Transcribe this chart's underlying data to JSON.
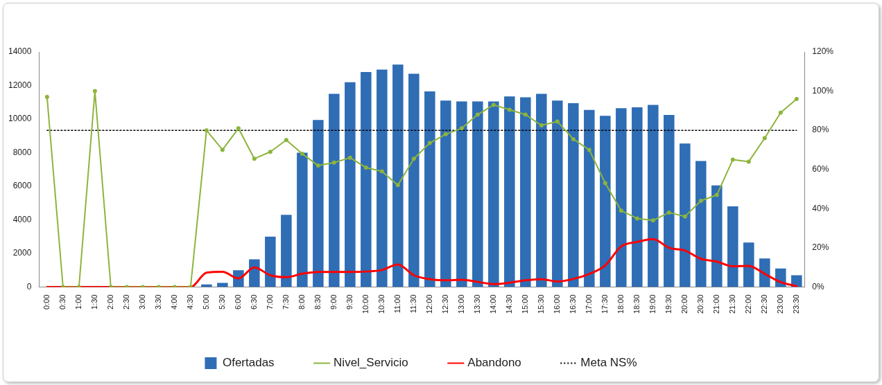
{
  "chart_data": {
    "type": "bar",
    "categories": [
      "0:00",
      "0:30",
      "1:00",
      "1:30",
      "2:00",
      "2:30",
      "3:00",
      "3:30",
      "4:00",
      "4:30",
      "5:00",
      "5:30",
      "6:00",
      "6:30",
      "7:00",
      "7:30",
      "8:00",
      "8:30",
      "9:00",
      "9:30",
      "10:00",
      "10:30",
      "11:00",
      "11:30",
      "12:00",
      "12:30",
      "13:00",
      "13:30",
      "14:00",
      "14:30",
      "15:00",
      "15:30",
      "16:00",
      "16:30",
      "17:00",
      "17:30",
      "18:00",
      "18:30",
      "19:00",
      "19:30",
      "20:00",
      "20:30",
      "21:00",
      "21:30",
      "22:00",
      "22:30",
      "23:00",
      "23:30"
    ],
    "series": [
      {
        "name": "Ofertadas",
        "color": "#2f6db5",
        "values": [
          0,
          0,
          0,
          0,
          0,
          0,
          0,
          0,
          0,
          0,
          150,
          250,
          1000,
          1650,
          3000,
          4300,
          8000,
          9950,
          11500,
          12200,
          12800,
          12950,
          13250,
          12700,
          11650,
          11100,
          11050,
          11050,
          11050,
          11350,
          11300,
          11500,
          11100,
          10950,
          10550,
          10200,
          10650,
          10700,
          10850,
          10250,
          8550,
          7500,
          6050,
          4800,
          2650,
          1700,
          1100,
          700
        ]
      },
      {
        "name": "Nivel_Servicio",
        "type": "line",
        "axis": "y2",
        "color": "#8db43c",
        "marker": "circle",
        "values": [
          97,
          0,
          0,
          100,
          0,
          0,
          0,
          0,
          0,
          0,
          80,
          70,
          81,
          65.5,
          69,
          75,
          68,
          62,
          63.5,
          66,
          61,
          59,
          52,
          65.5,
          73.5,
          78,
          81,
          88,
          93,
          90.5,
          88,
          82.5,
          84.5,
          75.5,
          70,
          53,
          39,
          35,
          34,
          38,
          36,
          44,
          47,
          65,
          64,
          76,
          89,
          96
        ]
      },
      {
        "name": "Abandono",
        "type": "line",
        "axis": "y2",
        "color": "#ff0000",
        "marker": "none",
        "values": [
          0,
          0,
          0,
          0,
          0,
          0,
          0,
          0,
          0,
          0,
          7.3,
          7.8,
          4.4,
          10,
          6,
          5,
          6.8,
          7.7,
          7.7,
          7.7,
          7.9,
          8.7,
          11.5,
          6,
          4,
          3.4,
          3.7,
          2.6,
          1.5,
          2.2,
          3.4,
          4,
          2.8,
          4.1,
          6.7,
          11,
          20.7,
          23,
          24.5,
          20,
          18.6,
          14.4,
          13,
          10.6,
          10.8,
          6.7,
          2.5,
          0.4
        ]
      },
      {
        "name": "Meta NS%",
        "type": "line",
        "axis": "y2",
        "color": "#000000",
        "marker": "none",
        "line_style": "dotted",
        "values": [
          80,
          80,
          80,
          80,
          80,
          80,
          80,
          80,
          80,
          80,
          80,
          80,
          80,
          80,
          80,
          80,
          80,
          80,
          80,
          80,
          80,
          80,
          80,
          80,
          80,
          80,
          80,
          80,
          80,
          80,
          80,
          80,
          80,
          80,
          80,
          80,
          80,
          80,
          80,
          80,
          80,
          80,
          80,
          80,
          80,
          80,
          80,
          80
        ]
      }
    ],
    "ylim": [
      0,
      14000
    ],
    "yticks": [
      0,
      2000,
      4000,
      6000,
      8000,
      10000,
      12000,
      14000
    ],
    "y2lim": [
      0,
      120
    ],
    "y2ticks": [
      {
        "value": 0,
        "label": "0%"
      },
      {
        "value": 20,
        "label": "20%"
      },
      {
        "value": 40,
        "label": "40%"
      },
      {
        "value": 60,
        "label": "60%"
      },
      {
        "value": 80,
        "label": "80%"
      },
      {
        "value": 100,
        "label": "100%"
      },
      {
        "value": 120,
        "label": "120%"
      }
    ],
    "grid": false,
    "legend": "bottom"
  }
}
